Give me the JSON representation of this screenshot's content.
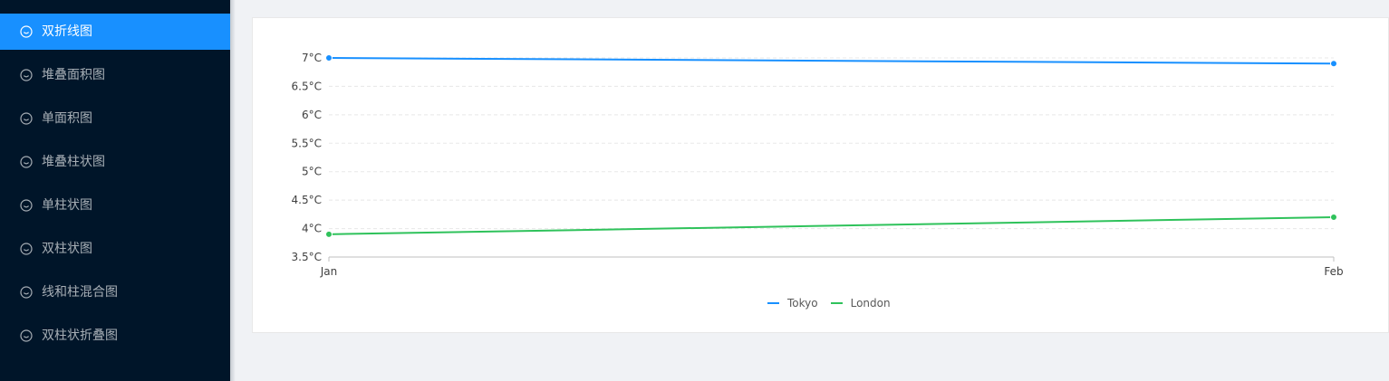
{
  "sidebar": {
    "items": [
      {
        "label": "双折线图",
        "icon": "smile-icon",
        "active": true
      },
      {
        "label": "堆叠面积图",
        "icon": "smile-icon",
        "active": false
      },
      {
        "label": "单面积图",
        "icon": "smile-icon",
        "active": false
      },
      {
        "label": "堆叠柱状图",
        "icon": "smile-icon",
        "active": false
      },
      {
        "label": "单柱状图",
        "icon": "smile-icon",
        "active": false
      },
      {
        "label": "双柱状图",
        "icon": "smile-icon",
        "active": false
      },
      {
        "label": "线和柱混合图",
        "icon": "smile-icon",
        "active": false
      },
      {
        "label": "双柱状折叠图",
        "icon": "smile-icon",
        "active": false
      }
    ]
  },
  "colors": {
    "sidebar_bg": "#001529",
    "active_bg": "#1890ff",
    "tokyo": "#1890ff",
    "london": "#2fc25b"
  },
  "chart_data": {
    "type": "line",
    "categories": [
      "Jan",
      "Feb"
    ],
    "series": [
      {
        "name": "Tokyo",
        "values": [
          7.0,
          6.9
        ]
      },
      {
        "name": "London",
        "values": [
          3.9,
          4.2
        ]
      }
    ],
    "y_ticks": [
      "3.5°C",
      "4°C",
      "4.5°C",
      "5°C",
      "5.5°C",
      "6°C",
      "6.5°C",
      "7°C"
    ],
    "ylim": [
      3.5,
      7.0
    ],
    "y_unit": "°C",
    "grid": true,
    "legend": "bottom-center"
  }
}
